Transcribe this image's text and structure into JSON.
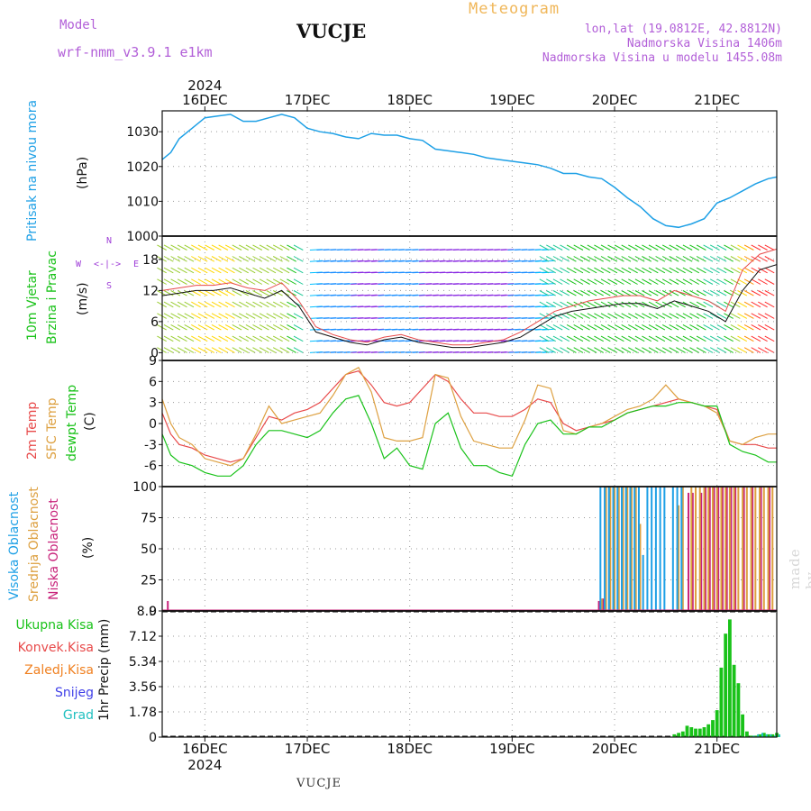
{
  "header": {
    "model_label": "Model",
    "model_name": "wrf-nmm_v3.9.1  e1km",
    "station": "VUCJE",
    "meteogram_label": "Meteogram",
    "coords": "lon,lat (19.0812E, 42.8812N)",
    "altitude": "Nadmorska Visina 1406m",
    "model_altitude": "Nadmorska Visina u modelu 1455.08m",
    "footer_station": "VUCJE",
    "watermark": "made by Angel"
  },
  "time_axis": {
    "year": "2024",
    "days": [
      "16DEC",
      "17DEC",
      "18DEC",
      "19DEC",
      "20DEC",
      "21DEC"
    ],
    "hours_start": -10,
    "hours_end": 134
  },
  "panels": {
    "pressure": {
      "label": "Pritisak na nivou mora",
      "unit": "(hPa)",
      "ylim": [
        1000,
        1036
      ],
      "ticks": [
        1000,
        1010,
        1020,
        1030
      ],
      "color": "#1ea0e6"
    },
    "wind": {
      "label1": "10m Vjetar",
      "label2": "Brzina i Pravac",
      "unit": "(m/s)",
      "ylim": [
        -1.5,
        22.5
      ],
      "ticks": [
        0,
        6,
        12,
        18
      ],
      "compass": {
        "n": "N",
        "w": "W",
        "e": "E",
        "s": "S"
      }
    },
    "temperature": {
      "label1": "2m Temp",
      "label2": "SFC Temp",
      "label3": "dewpt Temp",
      "unit": "(C)",
      "ylim": [
        -9,
        9
      ],
      "ticks": [
        -6,
        -3,
        0,
        3,
        6,
        9
      ]
    },
    "cloud": {
      "label1": "Visoka Oblacnost",
      "label2": "Srednja Oblacnost",
      "label3": "Niska Oblacnost",
      "unit": "(%)",
      "ylim": [
        0,
        100
      ],
      "ticks": [
        0,
        25,
        50,
        75,
        100
      ]
    },
    "precip": {
      "unit": "1hr Precip (mm)",
      "ylim": [
        0,
        8.9
      ],
      "ticks": [
        "0",
        "1.78",
        "3.56",
        "5.34",
        "7.12",
        "8.9"
      ],
      "legend": [
        "Ukupna Kisa",
        "Konvek.Kisa",
        "Zaledj.Kisa",
        "Snijeg",
        "Grad"
      ]
    }
  },
  "colors": {
    "pressure": "#1ea0e6",
    "temp2m": "#e84a4a",
    "sfc": "#dda040",
    "dewpt": "#19c219",
    "high_cloud": "#1ea0e6",
    "mid_cloud": "#dda040",
    "low_cloud": "#c8227a",
    "total_rain": "#19c219",
    "conv_rain": "#e84a4a",
    "frz_rain": "#f08020",
    "snow": "#4040e8",
    "hail": "#20c0c0",
    "wind_label": "#19c219",
    "pressure_label": "#1ea0e6",
    "compass": "#a040d8",
    "header": "#b25fd8",
    "meteogram": "#f0b75a"
  },
  "chart_data": {
    "type": "line",
    "title": "Meteogram",
    "x_unit": "hours from 16DEC 00UTC",
    "pressure_series": {
      "name": "Pritisak na nivou mora",
      "x": [
        -10,
        -8,
        -6,
        -3,
        0,
        3,
        6,
        9,
        12,
        15,
        18,
        21,
        24,
        27,
        30,
        33,
        36,
        39,
        42,
        45,
        48,
        51,
        54,
        57,
        60,
        63,
        66,
        69,
        72,
        75,
        78,
        81,
        84,
        87,
        90,
        93,
        96,
        99,
        102,
        105,
        108,
        111,
        114,
        117,
        120,
        123,
        126,
        129,
        132,
        134
      ],
      "values": [
        1022,
        1024,
        1028,
        1031,
        1034,
        1034.5,
        1035,
        1033,
        1033,
        1034,
        1035,
        1034,
        1031,
        1030,
        1029.5,
        1028.5,
        1028,
        1029.5,
        1029,
        1029,
        1028,
        1027.5,
        1025,
        1024.5,
        1024,
        1023.5,
        1022.5,
        1022,
        1021.5,
        1021,
        1020.5,
        1019.5,
        1018,
        1018,
        1017,
        1016.5,
        1014,
        1011,
        1008.5,
        1005,
        1003,
        1002.5,
        1003.5,
        1005,
        1009.5,
        1011,
        1013,
        1015,
        1016.5,
        1017
      ]
    },
    "temperature_series": [
      {
        "name": "2m Temp",
        "x": [
          -10,
          -8,
          -6,
          -3,
          0,
          3,
          6,
          9,
          12,
          15,
          18,
          21,
          24,
          27,
          30,
          33,
          36,
          39,
          42,
          45,
          48,
          51,
          54,
          57,
          60,
          63,
          66,
          69,
          72,
          75,
          78,
          81,
          84,
          87,
          90,
          93,
          96,
          99,
          102,
          105,
          108,
          111,
          114,
          117,
          120,
          123,
          126,
          129,
          132,
          134
        ],
        "values": [
          1.5,
          -1.5,
          -3,
          -3.5,
          -4.5,
          -5,
          -5.5,
          -5,
          -2,
          1,
          0.5,
          1.5,
          2,
          3,
          5,
          7,
          7.5,
          5.5,
          3,
          2.5,
          3,
          5,
          7,
          6,
          3.5,
          1.5,
          1.5,
          1,
          1,
          2,
          3.5,
          3,
          0,
          -1,
          -0.5,
          0,
          0.5,
          1.5,
          2,
          2.5,
          3,
          3.5,
          3,
          2.5,
          2,
          -2.5,
          -3,
          -3,
          -3.5,
          -3.5
        ]
      },
      {
        "name": "SFC Temp",
        "x": [
          -10,
          -8,
          -6,
          -3,
          0,
          3,
          6,
          9,
          12,
          15,
          18,
          21,
          24,
          27,
          30,
          33,
          36,
          39,
          42,
          45,
          48,
          51,
          54,
          57,
          60,
          63,
          66,
          69,
          72,
          75,
          78,
          81,
          84,
          87,
          90,
          93,
          96,
          99,
          102,
          105,
          108,
          111,
          114,
          117,
          120,
          123,
          126,
          129,
          132,
          134
        ],
        "values": [
          3.5,
          0,
          -2,
          -3,
          -5,
          -5.5,
          -6,
          -5,
          -1.5,
          2.5,
          0,
          0.5,
          1,
          1.5,
          4,
          7,
          8,
          4.5,
          -2,
          -2.5,
          -2.5,
          -2,
          7,
          6.5,
          1,
          -2.5,
          -3,
          -3.5,
          -3.5,
          0.5,
          5.5,
          5,
          -1,
          -1.5,
          -0.5,
          0,
          1,
          2,
          2.5,
          3.5,
          5.5,
          3.5,
          3,
          2.5,
          1.5,
          -2.5,
          -3,
          -2,
          -1.5,
          -1.5
        ]
      },
      {
        "name": "dewpt Temp",
        "x": [
          -10,
          -8,
          -6,
          -3,
          0,
          3,
          6,
          9,
          12,
          15,
          18,
          21,
          24,
          27,
          30,
          33,
          36,
          39,
          42,
          45,
          48,
          51,
          54,
          57,
          60,
          63,
          66,
          69,
          72,
          75,
          78,
          81,
          84,
          87,
          90,
          93,
          96,
          99,
          102,
          105,
          108,
          111,
          114,
          117,
          120,
          123,
          126,
          129,
          132,
          134
        ],
        "values": [
          -1.5,
          -4.5,
          -5.5,
          -6,
          -7,
          -7.5,
          -7.5,
          -6,
          -3,
          -1,
          -1,
          -1.5,
          -2,
          -1,
          1.5,
          3.5,
          4,
          0,
          -5,
          -3.5,
          -6,
          -6.5,
          0,
          1.5,
          -3.5,
          -6,
          -6,
          -7,
          -7.5,
          -3,
          0,
          0.5,
          -1.5,
          -1.5,
          -0.5,
          -0.5,
          0.5,
          1.5,
          2,
          2.5,
          2.5,
          3,
          3,
          2.5,
          2.5,
          -3,
          -4,
          -4.5,
          -5.5,
          -5.5
        ]
      }
    ],
    "wind_speed_series": {
      "x": [
        -10,
        -6,
        -2,
        2,
        6,
        10,
        14,
        18,
        22,
        26,
        30,
        34,
        38,
        42,
        46,
        50,
        54,
        58,
        62,
        66,
        70,
        74,
        78,
        82,
        86,
        90,
        94,
        98,
        102,
        106,
        110,
        114,
        118,
        122,
        126,
        130,
        134
      ],
      "values": [
        11,
        11.5,
        12,
        12,
        12.5,
        11.5,
        10.5,
        12,
        9,
        4,
        3,
        2,
        1.5,
        2.5,
        3,
        2,
        1.5,
        1,
        1,
        1.5,
        2,
        3,
        5,
        7,
        8,
        8.5,
        9,
        9.5,
        9.5,
        8.5,
        10,
        9,
        8,
        6,
        12,
        16,
        17
      ]
    },
    "wind_gust_series": {
      "x": [
        -10,
        -6,
        -2,
        2,
        6,
        10,
        14,
        18,
        22,
        26,
        30,
        34,
        38,
        42,
        46,
        50,
        54,
        58,
        62,
        66,
        70,
        74,
        78,
        82,
        86,
        90,
        94,
        98,
        102,
        106,
        110,
        114,
        118,
        122,
        126,
        130,
        134
      ],
      "values": [
        12,
        12.5,
        13,
        13,
        13.5,
        12.5,
        12,
        13.5,
        10,
        5,
        3.5,
        2.5,
        2,
        3,
        3.5,
        2.5,
        2,
        1.5,
        1.5,
        2,
        2.5,
        4,
        6,
        8,
        9,
        10,
        10.5,
        11,
        11,
        10,
        12,
        11,
        10,
        8,
        16,
        19,
        20
      ]
    },
    "cloud_bars": {
      "high_x": [
        93,
        94,
        95,
        96,
        97,
        98,
        99,
        100,
        101,
        102,
        103,
        104,
        105,
        106,
        107,
        108,
        110,
        111,
        112
      ],
      "high_values": [
        100,
        100,
        100,
        100,
        100,
        100,
        100,
        100,
        100,
        100,
        45,
        100,
        100,
        100,
        100,
        100,
        100,
        100,
        100
      ],
      "mid_x": [
        93,
        94,
        95,
        96,
        97,
        98,
        99,
        100,
        101,
        102,
        111,
        112,
        114,
        115,
        116,
        117,
        118,
        119,
        120,
        121,
        122,
        123,
        124,
        125,
        126,
        127,
        128,
        129,
        130,
        131,
        132,
        133
      ],
      "mid_values": [
        10,
        100,
        100,
        100,
        100,
        100,
        100,
        100,
        100,
        70,
        85,
        100,
        100,
        100,
        100,
        100,
        100,
        100,
        100,
        100,
        100,
        100,
        100,
        100,
        100,
        100,
        100,
        100,
        100,
        100,
        100,
        100
      ],
      "low_x": [
        -9,
        92,
        93,
        113,
        114,
        116,
        117,
        118,
        119,
        120,
        121,
        122,
        123,
        124,
        126,
        128,
        130,
        132
      ],
      "low_values": [
        8,
        8,
        10,
        95,
        95,
        95,
        100,
        100,
        100,
        100,
        100,
        100,
        100,
        100,
        100,
        100,
        100,
        100
      ]
    },
    "precip_bars": {
      "name": "Ukupna Kisa",
      "x": [
        110,
        111,
        112,
        113,
        114,
        115,
        116,
        117,
        118,
        119,
        120,
        121,
        122,
        123,
        124,
        125,
        126,
        127,
        128,
        129,
        130,
        131,
        132,
        133,
        134
      ],
      "values": [
        0.2,
        0.3,
        0.4,
        0.8,
        0.7,
        0.6,
        0.6,
        0.7,
        0.9,
        1.2,
        1.9,
        4.9,
        7.3,
        8.3,
        5.1,
        3.8,
        1.6,
        0.4,
        0.1,
        0.1,
        0.2,
        0.3,
        0.2,
        0.2,
        0.3
      ]
    },
    "snow_bars": {
      "name": "Snijeg",
      "x": [
        128,
        129,
        130,
        131,
        132,
        133,
        134
      ],
      "values": [
        0.1,
        0.2,
        0.3,
        0.2,
        0.2,
        0.1,
        0.2
      ]
    }
  }
}
